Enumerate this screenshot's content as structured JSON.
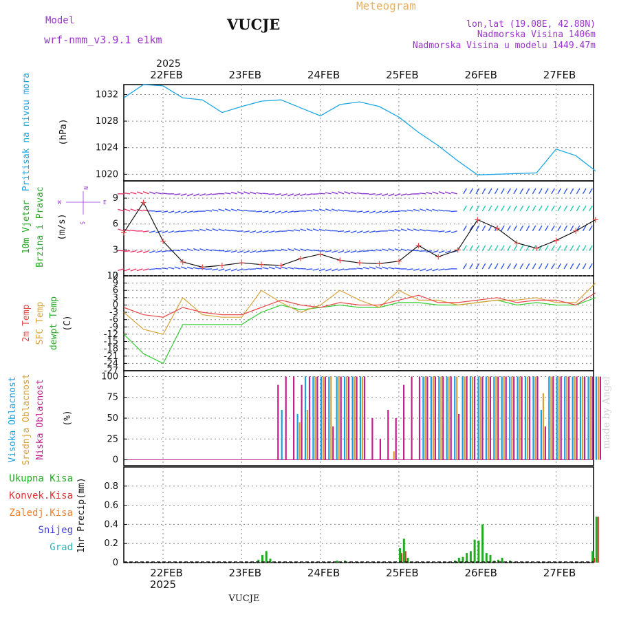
{
  "header": {
    "model_label": "Model",
    "model_name": "wrf-nmm_v3.9.1  e1km",
    "station": "VUCJE",
    "title": "Meteogram",
    "lonlat": "lon,lat (19.08E, 42.88N)",
    "altitude": "Nadmorska Visina 1406m",
    "model_altitude": "Nadmorska Visina u modelu 1449.47m",
    "watermark": "made by Angel",
    "footer_station": "VUCJE"
  },
  "colors": {
    "pressure": "#1aa6e6",
    "temp2m": "#e84848",
    "sfc": "#d9a238",
    "dewpt": "#33cc33",
    "cloud_high": "#1a9fe0",
    "cloud_mid": "#d9a238",
    "cloud_low": "#c0208a",
    "precip_total": "#22aa22",
    "precip_conv": "#dd3333",
    "snow": "#4444dd",
    "grad": "#22bbbb",
    "purple": "#9933cc"
  },
  "time_axis": {
    "year": "2025",
    "days": [
      "22FEB",
      "23FEB",
      "24FEB",
      "25FEB",
      "26FEB",
      "27FEB"
    ]
  },
  "chart_data": [
    {
      "type": "line",
      "panel": "pressure",
      "ylabel_main": "Pritisak na nivou mora",
      "unit": "(hPa)",
      "ylim": [
        1019,
        1033.5
      ],
      "yticks": [
        "1020",
        "1024",
        "1028",
        "1032"
      ],
      "x_days": [
        0,
        0.25,
        0.5,
        0.75,
        1.0,
        1.25,
        1.5,
        1.75,
        2.0,
        2.25,
        2.5,
        2.75,
        3.0,
        3.25,
        3.5,
        3.75,
        4.0,
        4.25,
        4.5,
        4.75,
        5.0,
        5.25,
        5.5,
        5.75,
        6.0
      ],
      "series": [
        {
          "values": [
            1031.5,
            1033.5,
            1033.3,
            1031.5,
            1031.2,
            1029.3,
            1030.2,
            1031.0,
            1031.2,
            1030.0,
            1028.8,
            1030.5,
            1030.9,
            1030.2,
            1028.6,
            1026.3,
            1024.3,
            1022.0,
            1019.9,
            1020.0,
            1020.1,
            1020.2,
            1023.8,
            1022.8,
            1020.5
          ]
        }
      ]
    },
    {
      "type": "line",
      "panel": "wind",
      "ylabel_main": "10m Vjetar",
      "ylabel_sub": "Brzina i Pravac",
      "unit": "(m/s)",
      "compass": [
        "N",
        "W",
        "E",
        "S"
      ],
      "ylim": [
        0,
        11
      ],
      "yticks": [
        "0",
        "3",
        "6",
        "9"
      ],
      "x_days": [
        0,
        0.25,
        0.5,
        0.75,
        1.0,
        1.25,
        1.5,
        1.75,
        2.0,
        2.25,
        2.5,
        2.75,
        3.0,
        3.25,
        3.5,
        3.75,
        4.0,
        4.25,
        4.5,
        4.75,
        5.0,
        5.25,
        5.5,
        5.75,
        6.0
      ],
      "series": [
        {
          "values": [
            5.0,
            8.5,
            4.0,
            1.6,
            1.0,
            1.2,
            1.5,
            1.3,
            1.2,
            2.0,
            2.5,
            1.8,
            1.5,
            1.4,
            1.7,
            3.5,
            2.2,
            3.0,
            6.5,
            5.5,
            3.8,
            3.2,
            4.1,
            5.2,
            6.5
          ]
        }
      ]
    },
    {
      "type": "line",
      "panel": "temperature",
      "ylabel_lines": [
        "2m Temp",
        "SFC Temp",
        "dewpt Temp"
      ],
      "unit": "(C)",
      "ylim": [
        -27,
        12
      ],
      "yticks": [
        "12",
        "9",
        "6",
        "3",
        "0",
        "-3",
        "-6",
        "-9",
        "-12",
        "-15",
        "-18",
        "-21",
        "-24",
        "-27"
      ],
      "x_days": [
        0,
        0.25,
        0.5,
        0.75,
        1.0,
        1.25,
        1.5,
        1.75,
        2.0,
        2.25,
        2.5,
        2.75,
        3.0,
        3.25,
        3.5,
        3.75,
        4.0,
        4.25,
        4.5,
        4.75,
        5.0,
        5.25,
        5.5,
        5.75,
        6.0
      ],
      "series": [
        {
          "name": "2m Temp",
          "values": [
            -1,
            -4,
            -5,
            -1,
            -3,
            -4,
            -4,
            -1,
            2,
            0,
            -1,
            1,
            0,
            0,
            2,
            4,
            1,
            1,
            2,
            3,
            1,
            2,
            2,
            0,
            5
          ]
        },
        {
          "name": "SFC Temp",
          "values": [
            -3,
            -10,
            -12,
            3,
            -4,
            -5,
            -5,
            6,
            1,
            -3,
            0,
            6,
            2,
            -1,
            6,
            2,
            2,
            0,
            1,
            2,
            2,
            3,
            1,
            1,
            9
          ]
        },
        {
          "name": "dewpt Temp",
          "values": [
            -12,
            -20,
            -24,
            -8,
            -8,
            -8,
            -8,
            -3,
            0,
            -2,
            -1,
            0,
            -1,
            -1,
            1,
            1,
            0,
            0,
            1,
            2,
            0,
            1,
            0,
            0,
            3
          ]
        }
      ]
    },
    {
      "type": "bar",
      "panel": "clouds",
      "ylabel_lines": [
        "Visoka Oblacnost",
        "Srednja Oblacnost",
        "Niska Oblacnost"
      ],
      "unit": "(%)",
      "ylim": [
        -7,
        107
      ],
      "yticks": [
        "0",
        "25",
        "50",
        "75",
        "100"
      ],
      "x_days": [
        1.9,
        2.0,
        2.1,
        2.2,
        2.3,
        2.4,
        2.5,
        2.6,
        2.7,
        2.8,
        2.9,
        3.0,
        3.1,
        3.2,
        3.3,
        3.4,
        3.5,
        3.6,
        3.7,
        3.8,
        3.9,
        4.0,
        4.1,
        4.2,
        4.3,
        4.4,
        4.5,
        4.6,
        4.7,
        4.8,
        4.9,
        5.0,
        5.1,
        5.2,
        5.3,
        5.4,
        5.5,
        5.6,
        5.7,
        5.8,
        5.9,
        6.0
      ],
      "series": [
        {
          "name": "Visoka Oblacnost",
          "values": [
            0,
            60,
            0,
            55,
            100,
            100,
            100,
            100,
            100,
            100,
            100,
            100,
            0,
            0,
            0,
            0,
            0,
            0,
            0,
            100,
            100,
            100,
            100,
            100,
            100,
            100,
            100,
            100,
            100,
            100,
            100,
            100,
            100,
            100,
            60,
            100,
            100,
            100,
            100,
            100,
            100,
            100
          ]
        },
        {
          "name": "Srednja Oblacnost",
          "values": [
            0,
            0,
            0,
            45,
            60,
            100,
            100,
            100,
            100,
            100,
            100,
            100,
            0,
            0,
            0,
            10,
            0,
            0,
            0,
            100,
            100,
            100,
            100,
            100,
            100,
            100,
            100,
            100,
            100,
            100,
            100,
            100,
            100,
            100,
            80,
            100,
            100,
            100,
            100,
            100,
            100,
            100
          ]
        },
        {
          "name": "Niska Oblacnost",
          "values": [
            90,
            100,
            100,
            90,
            100,
            100,
            100,
            40,
            100,
            100,
            100,
            100,
            50,
            25,
            60,
            50,
            90,
            100,
            100,
            100,
            100,
            100,
            100,
            55,
            100,
            100,
            100,
            100,
            100,
            100,
            100,
            100,
            100,
            100,
            40,
            100,
            100,
            100,
            100,
            100,
            100,
            100
          ]
        }
      ]
    },
    {
      "type": "bar",
      "panel": "precip",
      "legend": [
        "Ukupna Kisa",
        "Konvek.Kisa",
        "Zaledj.Kisa",
        "Snijeg",
        "Grad"
      ],
      "ylabel_main": "1hr Precip",
      "unit": "(mm)",
      "ylim": [
        0,
        1
      ],
      "yticks": [
        "0",
        "0.2",
        "0.4",
        "0.6",
        "0.8"
      ],
      "x_days": [
        1.7,
        1.75,
        1.8,
        1.85,
        2.7,
        2.8,
        3.5,
        3.55,
        3.6,
        4.2,
        4.25,
        4.3,
        4.35,
        4.4,
        4.45,
        4.5,
        4.55,
        4.6,
        4.65,
        4.7,
        4.75,
        4.8,
        4.9,
        5.95,
        6.0
      ],
      "series": [
        {
          "name": "Ukupna Kisa",
          "values": [
            0.03,
            0.08,
            0.12,
            0.04,
            0.02,
            0.02,
            0.15,
            0.25,
            0.05,
            0.02,
            0.05,
            0.06,
            0.1,
            0.12,
            0.24,
            0.23,
            0.4,
            0.1,
            0.08,
            0.02,
            0.03,
            0.05,
            0.02,
            0.12,
            0.48
          ]
        },
        {
          "name": "Konvek.Kisa",
          "values": [
            0,
            0,
            0,
            0,
            0,
            0,
            0.1,
            0.12,
            0,
            0,
            0,
            0,
            0,
            0,
            0,
            0,
            0,
            0,
            0,
            0,
            0,
            0,
            0,
            0.05,
            0.48
          ]
        }
      ]
    }
  ]
}
